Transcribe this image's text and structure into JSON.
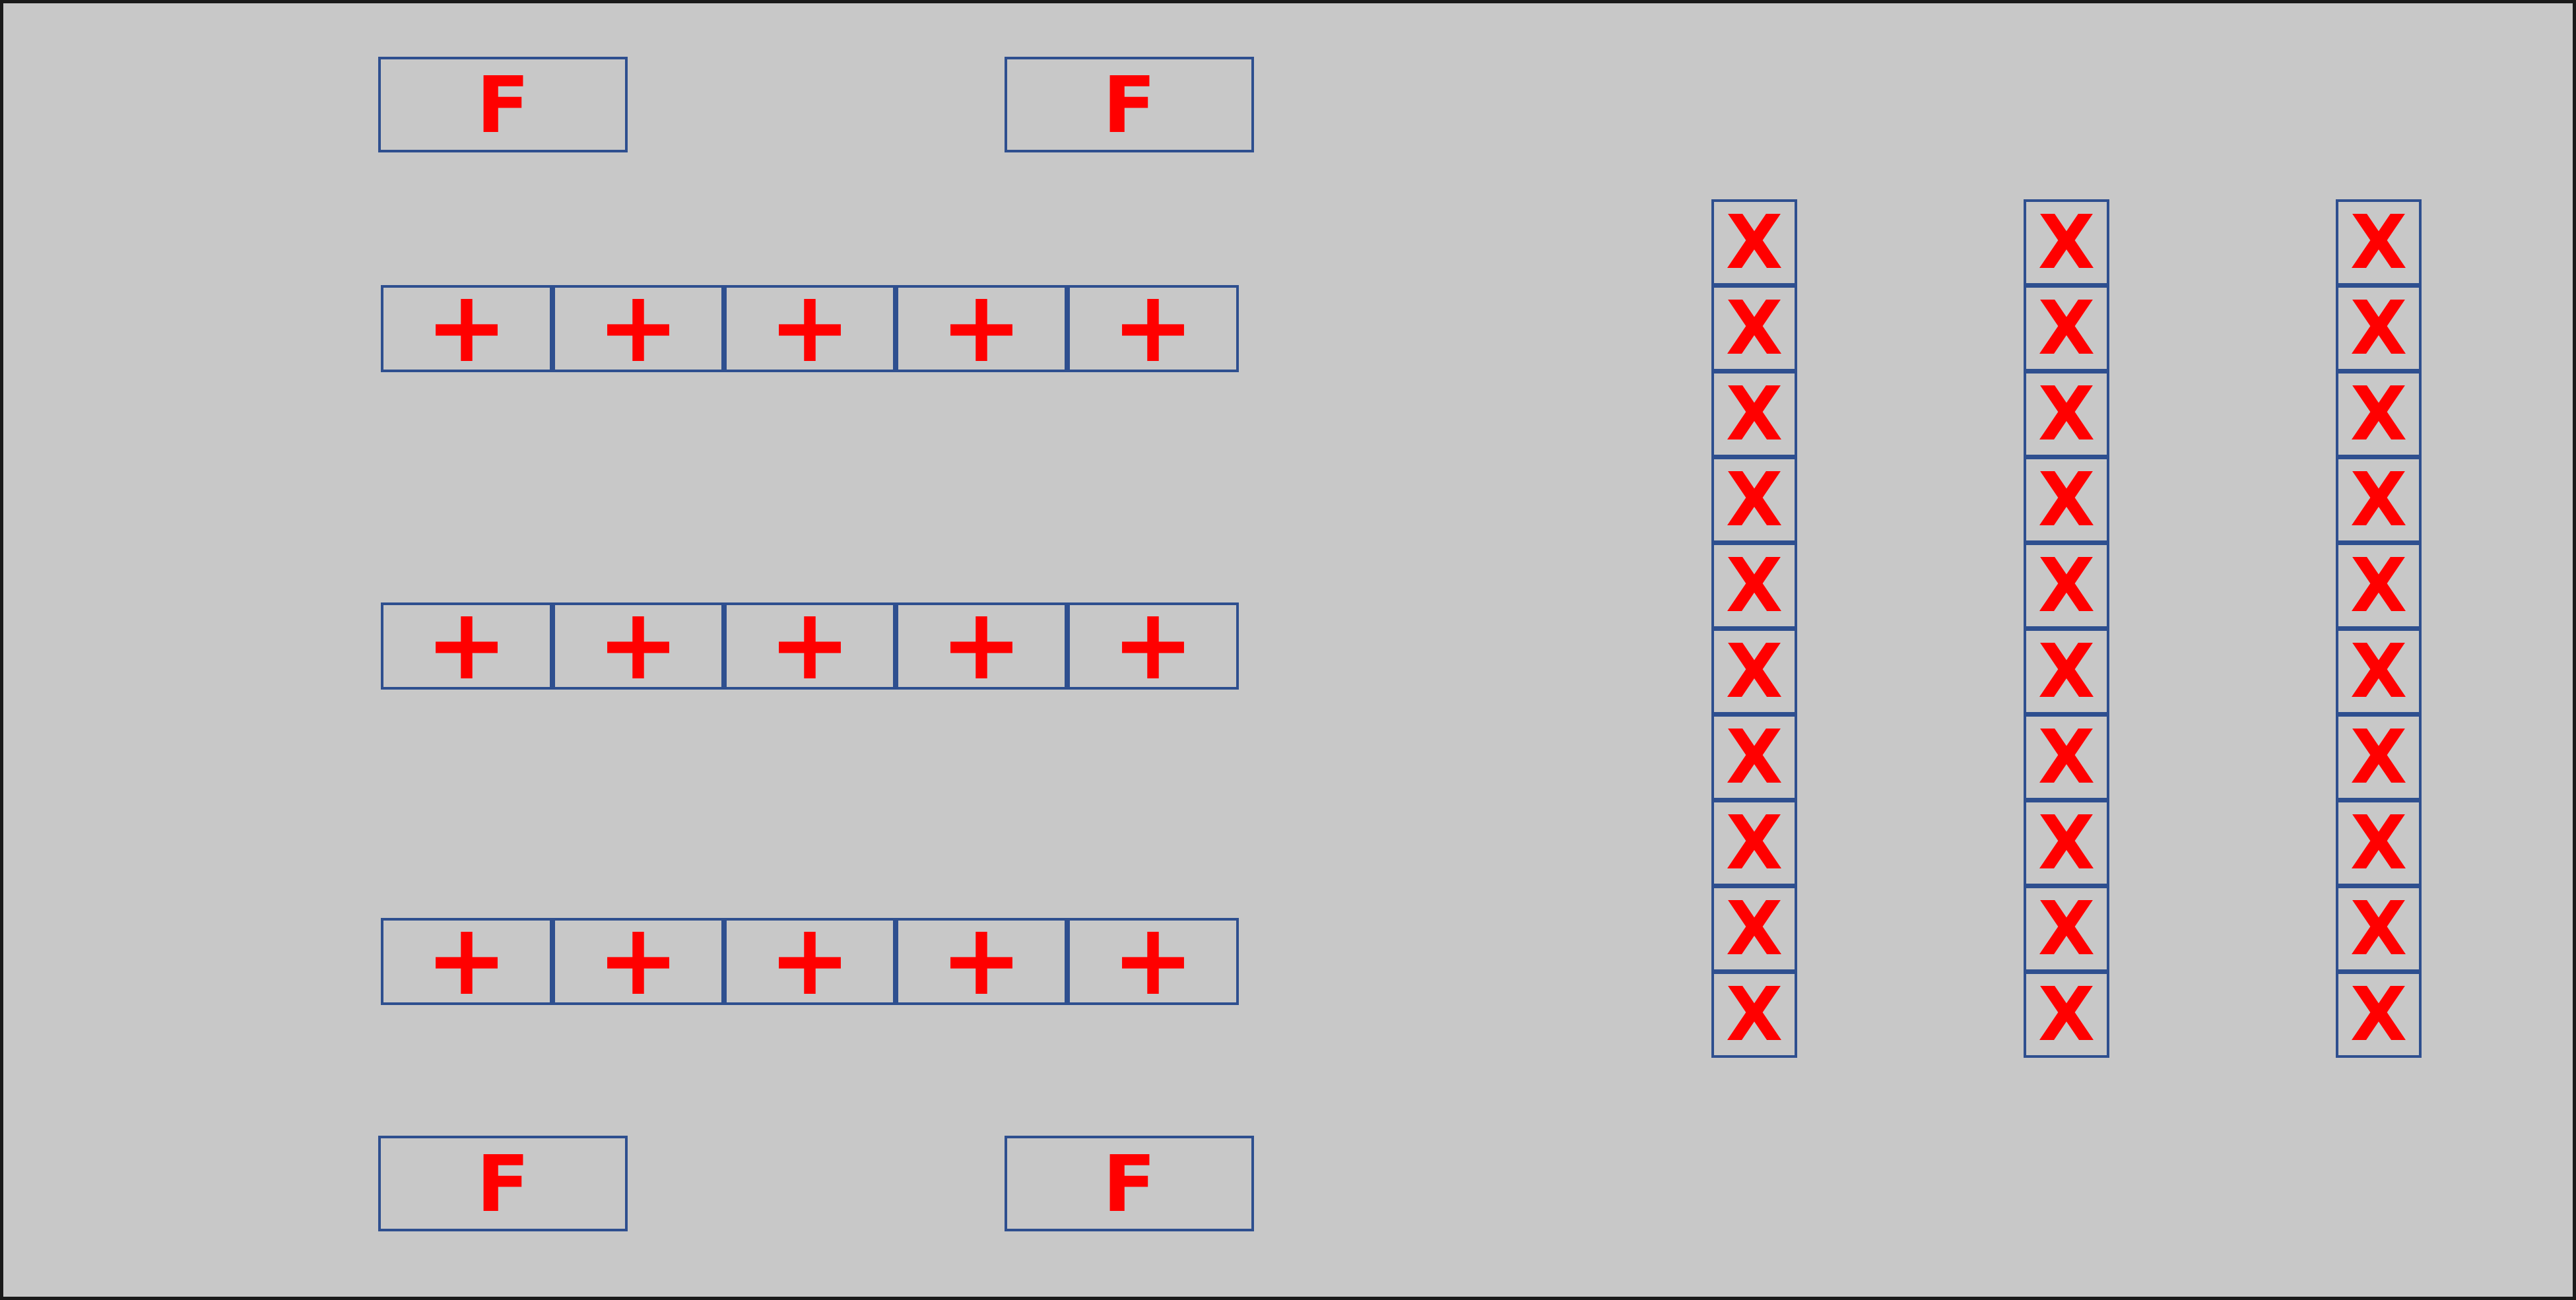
{
  "layout": {
    "background_color": "#c8c8c8",
    "symbol_color": "#ff0000",
    "box_border_color": "#2e4f8f",
    "frame_color": "#1a1a1a"
  },
  "f_boxes": [
    {
      "label": "F"
    },
    {
      "label": "F"
    },
    {
      "label": "F"
    },
    {
      "label": "F"
    }
  ],
  "plus_rows": [
    {
      "cells": [
        "+",
        "+",
        "+",
        "+",
        "+"
      ]
    },
    {
      "cells": [
        "+",
        "+",
        "+",
        "+",
        "+"
      ]
    },
    {
      "cells": [
        "+",
        "+",
        "+",
        "+",
        "+"
      ]
    }
  ],
  "x_columns": [
    {
      "cells": [
        "X",
        "X",
        "X",
        "X",
        "X",
        "X",
        "X",
        "X",
        "X",
        "X"
      ]
    },
    {
      "cells": [
        "X",
        "X",
        "X",
        "X",
        "X",
        "X",
        "X",
        "X",
        "X",
        "X"
      ]
    },
    {
      "cells": [
        "X",
        "X",
        "X",
        "X",
        "X",
        "X",
        "X",
        "X",
        "X",
        "X"
      ]
    }
  ]
}
